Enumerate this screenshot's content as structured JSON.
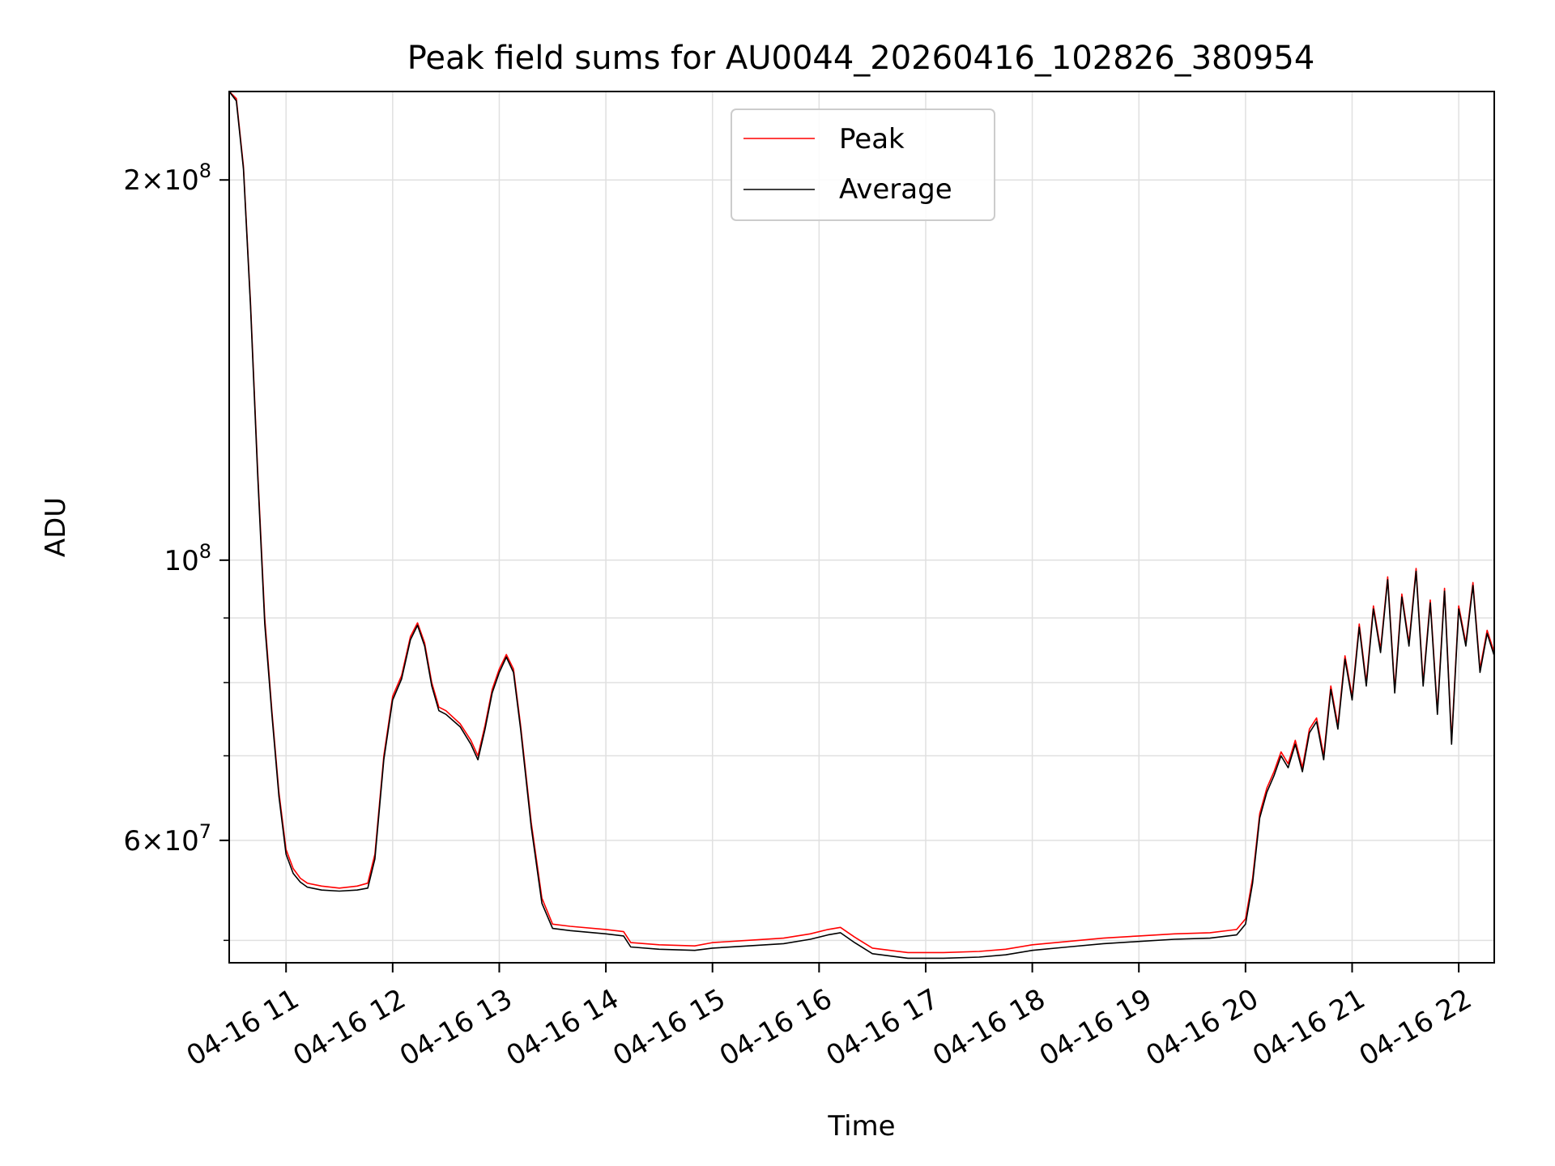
{
  "chart_data": {
    "type": "line",
    "title": "Peak field sums for AU0044_20260416_102826_380954",
    "xlabel": "Time",
    "ylabel": "ADU",
    "y_scale": "log",
    "xlim": [
      "2026-04-16 10:28",
      "2026-04-16 22:20"
    ],
    "ylim": [
      48000000,
      235000000
    ],
    "x_ticks": [
      {
        "value": "2026-04-16 11:00",
        "label": "04-16 11"
      },
      {
        "value": "2026-04-16 12:00",
        "label": "04-16 12"
      },
      {
        "value": "2026-04-16 13:00",
        "label": "04-16 13"
      },
      {
        "value": "2026-04-16 14:00",
        "label": "04-16 14"
      },
      {
        "value": "2026-04-16 15:00",
        "label": "04-16 15"
      },
      {
        "value": "2026-04-16 16:00",
        "label": "04-16 16"
      },
      {
        "value": "2026-04-16 17:00",
        "label": "04-16 17"
      },
      {
        "value": "2026-04-16 18:00",
        "label": "04-16 18"
      },
      {
        "value": "2026-04-16 19:00",
        "label": "04-16 19"
      },
      {
        "value": "2026-04-16 20:00",
        "label": "04-16 20"
      },
      {
        "value": "2026-04-16 21:00",
        "label": "04-16 21"
      },
      {
        "value": "2026-04-16 22:00",
        "label": "04-16 22"
      }
    ],
    "y_major_ticks": [
      {
        "value": 60000000,
        "base": "6",
        "exp": "7"
      },
      {
        "value": 100000000,
        "base": "",
        "exp": "8"
      },
      {
        "value": 200000000,
        "base": "2",
        "exp": "8"
      }
    ],
    "y_minor_ticks": [
      50000000,
      70000000,
      80000000,
      90000000
    ],
    "grid": true,
    "legend": "upper center",
    "series": [
      {
        "name": "Peak",
        "color": "#ff0000",
        "points": [
          [
            "2026-04-16 10:28",
            235000000
          ],
          [
            "2026-04-16 10:32",
            232000000
          ],
          [
            "2026-04-16 10:36",
            205000000
          ],
          [
            "2026-04-16 10:40",
            160000000
          ],
          [
            "2026-04-16 10:44",
            118000000
          ],
          [
            "2026-04-16 10:48",
            90000000
          ],
          [
            "2026-04-16 10:52",
            76000000
          ],
          [
            "2026-04-16 10:56",
            65500000
          ],
          [
            "2026-04-16 11:00",
            59000000
          ],
          [
            "2026-04-16 11:04",
            57000000
          ],
          [
            "2026-04-16 11:08",
            56000000
          ],
          [
            "2026-04-16 11:12",
            55500000
          ],
          [
            "2026-04-16 11:20",
            55200000
          ],
          [
            "2026-04-16 11:30",
            55000000
          ],
          [
            "2026-04-16 11:40",
            55200000
          ],
          [
            "2026-04-16 11:46",
            55500000
          ],
          [
            "2026-04-16 11:50",
            58500000
          ],
          [
            "2026-04-16 11:55",
            70000000
          ],
          [
            "2026-04-16 12:00",
            78000000
          ],
          [
            "2026-04-16 12:05",
            81000000
          ],
          [
            "2026-04-16 12:10",
            87000000
          ],
          [
            "2026-04-16 12:14",
            89200000
          ],
          [
            "2026-04-16 12:18",
            86000000
          ],
          [
            "2026-04-16 12:22",
            80000000
          ],
          [
            "2026-04-16 12:26",
            76500000
          ],
          [
            "2026-04-16 12:30",
            76000000
          ],
          [
            "2026-04-16 12:38",
            74200000
          ],
          [
            "2026-04-16 12:44",
            72000000
          ],
          [
            "2026-04-16 12:48",
            70000000
          ],
          [
            "2026-04-16 12:52",
            74000000
          ],
          [
            "2026-04-16 12:56",
            79000000
          ],
          [
            "2026-04-16 13:00",
            82000000
          ],
          [
            "2026-04-16 13:04",
            84200000
          ],
          [
            "2026-04-16 13:08",
            82000000
          ],
          [
            "2026-04-16 13:12",
            74000000
          ],
          [
            "2026-04-16 13:18",
            62000000
          ],
          [
            "2026-04-16 13:24",
            54000000
          ],
          [
            "2026-04-16 13:30",
            51500000
          ],
          [
            "2026-04-16 13:40",
            51300000
          ],
          [
            "2026-04-16 14:00",
            51000000
          ],
          [
            "2026-04-16 14:10",
            50800000
          ],
          [
            "2026-04-16 14:14",
            49800000
          ],
          [
            "2026-04-16 14:30",
            49600000
          ],
          [
            "2026-04-16 14:50",
            49500000
          ],
          [
            "2026-04-16 15:00",
            49800000
          ],
          [
            "2026-04-16 15:20",
            50000000
          ],
          [
            "2026-04-16 15:40",
            50200000
          ],
          [
            "2026-04-16 15:55",
            50600000
          ],
          [
            "2026-04-16 16:05",
            51000000
          ],
          [
            "2026-04-16 16:12",
            51200000
          ],
          [
            "2026-04-16 16:20",
            50300000
          ],
          [
            "2026-04-16 16:30",
            49300000
          ],
          [
            "2026-04-16 16:50",
            48900000
          ],
          [
            "2026-04-16 17:10",
            48900000
          ],
          [
            "2026-04-16 17:30",
            49000000
          ],
          [
            "2026-04-16 17:45",
            49200000
          ],
          [
            "2026-04-16 18:00",
            49600000
          ],
          [
            "2026-04-16 18:20",
            49900000
          ],
          [
            "2026-04-16 18:40",
            50200000
          ],
          [
            "2026-04-16 19:00",
            50400000
          ],
          [
            "2026-04-16 19:20",
            50600000
          ],
          [
            "2026-04-16 19:40",
            50700000
          ],
          [
            "2026-04-16 19:55",
            51000000
          ],
          [
            "2026-04-16 20:00",
            52000000
          ],
          [
            "2026-04-16 20:04",
            56000000
          ],
          [
            "2026-04-16 20:08",
            63000000
          ],
          [
            "2026-04-16 20:12",
            66000000
          ],
          [
            "2026-04-16 20:16",
            68000000
          ],
          [
            "2026-04-16 20:20",
            70500000
          ],
          [
            "2026-04-16 20:24",
            69000000
          ],
          [
            "2026-04-16 20:28",
            72000000
          ],
          [
            "2026-04-16 20:32",
            68500000
          ],
          [
            "2026-04-16 20:36",
            73500000
          ],
          [
            "2026-04-16 20:40",
            75000000
          ],
          [
            "2026-04-16 20:44",
            70000000
          ],
          [
            "2026-04-16 20:48",
            79500000
          ],
          [
            "2026-04-16 20:52",
            74000000
          ],
          [
            "2026-04-16 20:56",
            84000000
          ],
          [
            "2026-04-16 21:00",
            78000000
          ],
          [
            "2026-04-16 21:04",
            89000000
          ],
          [
            "2026-04-16 21:08",
            80000000
          ],
          [
            "2026-04-16 21:12",
            92000000
          ],
          [
            "2026-04-16 21:16",
            85000000
          ],
          [
            "2026-04-16 21:20",
            97000000
          ],
          [
            "2026-04-16 21:24",
            79000000
          ],
          [
            "2026-04-16 21:28",
            94000000
          ],
          [
            "2026-04-16 21:32",
            86000000
          ],
          [
            "2026-04-16 21:36",
            98500000
          ],
          [
            "2026-04-16 21:40",
            80000000
          ],
          [
            "2026-04-16 21:44",
            93000000
          ],
          [
            "2026-04-16 21:48",
            76000000
          ],
          [
            "2026-04-16 21:52",
            95000000
          ],
          [
            "2026-04-16 21:56",
            72000000
          ],
          [
            "2026-04-16 22:00",
            92000000
          ],
          [
            "2026-04-16 22:04",
            86000000
          ],
          [
            "2026-04-16 22:08",
            96000000
          ],
          [
            "2026-04-16 22:12",
            82000000
          ],
          [
            "2026-04-16 22:16",
            88000000
          ],
          [
            "2026-04-16 22:20",
            84500000
          ]
        ]
      },
      {
        "name": "Average",
        "color": "#000000",
        "points": [
          [
            "2026-04-16 10:28",
            235000000
          ],
          [
            "2026-04-16 10:32",
            231000000
          ],
          [
            "2026-04-16 10:36",
            204000000
          ],
          [
            "2026-04-16 10:40",
            159000000
          ],
          [
            "2026-04-16 10:44",
            117000000
          ],
          [
            "2026-04-16 10:48",
            89000000
          ],
          [
            "2026-04-16 10:52",
            75500000
          ],
          [
            "2026-04-16 10:56",
            65000000
          ],
          [
            "2026-04-16 11:00",
            58500000
          ],
          [
            "2026-04-16 11:04",
            56500000
          ],
          [
            "2026-04-16 11:08",
            55600000
          ],
          [
            "2026-04-16 11:12",
            55100000
          ],
          [
            "2026-04-16 11:20",
            54800000
          ],
          [
            "2026-04-16 11:30",
            54700000
          ],
          [
            "2026-04-16 11:40",
            54800000
          ],
          [
            "2026-04-16 11:46",
            55000000
          ],
          [
            "2026-04-16 11:50",
            58000000
          ],
          [
            "2026-04-16 11:55",
            69500000
          ],
          [
            "2026-04-16 12:00",
            77500000
          ],
          [
            "2026-04-16 12:05",
            80500000
          ],
          [
            "2026-04-16 12:10",
            86500000
          ],
          [
            "2026-04-16 12:14",
            88800000
          ],
          [
            "2026-04-16 12:18",
            85500000
          ],
          [
            "2026-04-16 12:22",
            79500000
          ],
          [
            "2026-04-16 12:26",
            76000000
          ],
          [
            "2026-04-16 12:30",
            75500000
          ],
          [
            "2026-04-16 12:38",
            73800000
          ],
          [
            "2026-04-16 12:44",
            71500000
          ],
          [
            "2026-04-16 12:48",
            69500000
          ],
          [
            "2026-04-16 12:52",
            73500000
          ],
          [
            "2026-04-16 12:56",
            78500000
          ],
          [
            "2026-04-16 13:00",
            81500000
          ],
          [
            "2026-04-16 13:04",
            83800000
          ],
          [
            "2026-04-16 13:08",
            81500000
          ],
          [
            "2026-04-16 13:12",
            73500000
          ],
          [
            "2026-04-16 13:18",
            61500000
          ],
          [
            "2026-04-16 13:24",
            53500000
          ],
          [
            "2026-04-16 13:30",
            51100000
          ],
          [
            "2026-04-16 13:40",
            50900000
          ],
          [
            "2026-04-16 14:00",
            50600000
          ],
          [
            "2026-04-16 14:10",
            50400000
          ],
          [
            "2026-04-16 14:14",
            49400000
          ],
          [
            "2026-04-16 14:30",
            49200000
          ],
          [
            "2026-04-16 14:50",
            49100000
          ],
          [
            "2026-04-16 15:00",
            49300000
          ],
          [
            "2026-04-16 15:20",
            49500000
          ],
          [
            "2026-04-16 15:40",
            49700000
          ],
          [
            "2026-04-16 15:55",
            50100000
          ],
          [
            "2026-04-16 16:05",
            50500000
          ],
          [
            "2026-04-16 16:12",
            50700000
          ],
          [
            "2026-04-16 16:20",
            49800000
          ],
          [
            "2026-04-16 16:30",
            48800000
          ],
          [
            "2026-04-16 16:50",
            48400000
          ],
          [
            "2026-04-16 17:10",
            48400000
          ],
          [
            "2026-04-16 17:30",
            48500000
          ],
          [
            "2026-04-16 17:45",
            48700000
          ],
          [
            "2026-04-16 18:00",
            49100000
          ],
          [
            "2026-04-16 18:20",
            49400000
          ],
          [
            "2026-04-16 18:40",
            49700000
          ],
          [
            "2026-04-16 19:00",
            49900000
          ],
          [
            "2026-04-16 19:20",
            50100000
          ],
          [
            "2026-04-16 19:40",
            50200000
          ],
          [
            "2026-04-16 19:55",
            50500000
          ],
          [
            "2026-04-16 20:00",
            51500000
          ],
          [
            "2026-04-16 20:04",
            55500000
          ],
          [
            "2026-04-16 20:08",
            62500000
          ],
          [
            "2026-04-16 20:12",
            65500000
          ],
          [
            "2026-04-16 20:16",
            67500000
          ],
          [
            "2026-04-16 20:20",
            70000000
          ],
          [
            "2026-04-16 20:24",
            68500000
          ],
          [
            "2026-04-16 20:28",
            71500000
          ],
          [
            "2026-04-16 20:32",
            68000000
          ],
          [
            "2026-04-16 20:36",
            73000000
          ],
          [
            "2026-04-16 20:40",
            74500000
          ],
          [
            "2026-04-16 20:44",
            69500000
          ],
          [
            "2026-04-16 20:48",
            79000000
          ],
          [
            "2026-04-16 20:52",
            73500000
          ],
          [
            "2026-04-16 20:56",
            83500000
          ],
          [
            "2026-04-16 21:00",
            77500000
          ],
          [
            "2026-04-16 21:04",
            88500000
          ],
          [
            "2026-04-16 21:08",
            79500000
          ],
          [
            "2026-04-16 21:12",
            91500000
          ],
          [
            "2026-04-16 21:16",
            84500000
          ],
          [
            "2026-04-16 21:20",
            96500000
          ],
          [
            "2026-04-16 21:24",
            78500000
          ],
          [
            "2026-04-16 21:28",
            93500000
          ],
          [
            "2026-04-16 21:32",
            85500000
          ],
          [
            "2026-04-16 21:36",
            98000000
          ],
          [
            "2026-04-16 21:40",
            79500000
          ],
          [
            "2026-04-16 21:44",
            92500000
          ],
          [
            "2026-04-16 21:48",
            75500000
          ],
          [
            "2026-04-16 21:52",
            94500000
          ],
          [
            "2026-04-16 21:56",
            71500000
          ],
          [
            "2026-04-16 22:00",
            91500000
          ],
          [
            "2026-04-16 22:04",
            85500000
          ],
          [
            "2026-04-16 22:08",
            95500000
          ],
          [
            "2026-04-16 22:12",
            81500000
          ],
          [
            "2026-04-16 22:16",
            87500000
          ],
          [
            "2026-04-16 22:20",
            84000000
          ]
        ]
      }
    ]
  }
}
